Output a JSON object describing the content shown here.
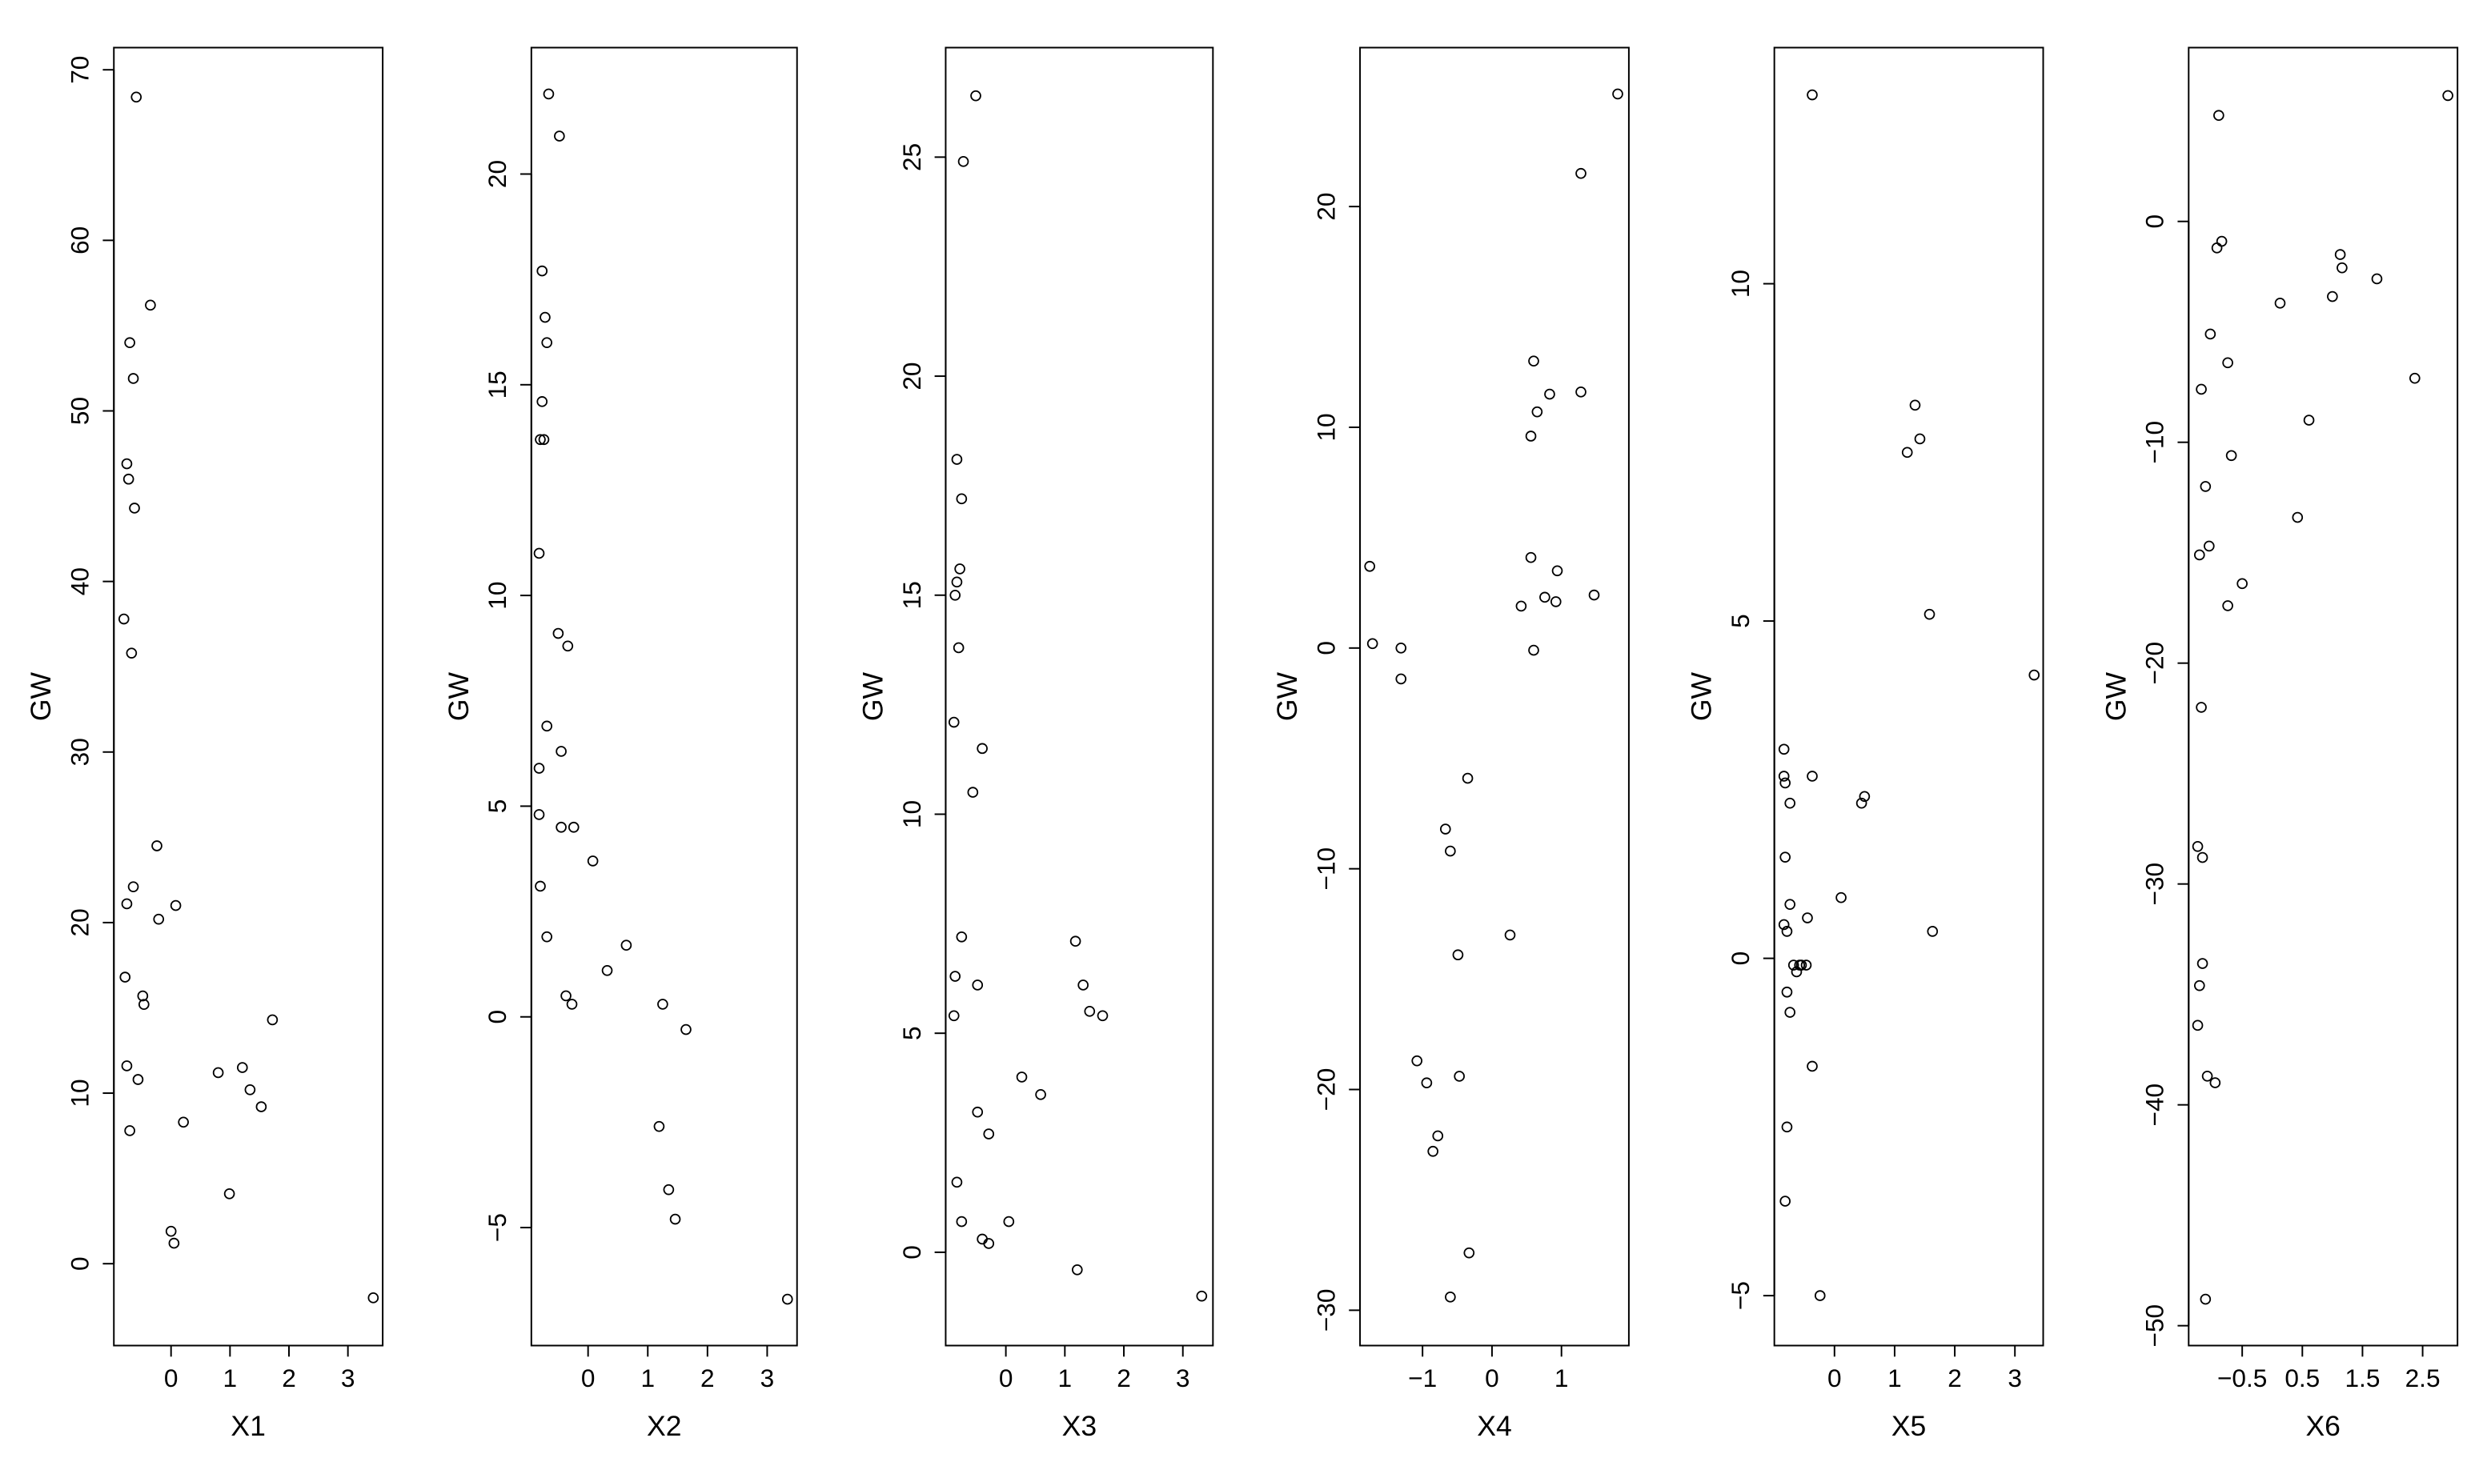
{
  "chart_data": [
    {
      "type": "scatter",
      "xlabel": "X1",
      "ylabel": "GW",
      "x": [
        -0.59,
        -0.35,
        -0.7,
        -0.64,
        -0.75,
        -0.72,
        -0.62,
        -0.8,
        -0.67,
        -0.24,
        -0.64,
        -0.75,
        0.08,
        -0.21,
        -0.78,
        -0.48,
        -0.46,
        1.72,
        -0.75,
        1.21,
        0.8,
        -0.56,
        1.34,
        1.53,
        0.21,
        -0.7,
        0.99,
        0.0,
        0.05,
        3.43
      ],
      "y": [
        68.4,
        56.2,
        54.0,
        51.9,
        46.9,
        46.0,
        44.3,
        37.8,
        35.8,
        24.5,
        22.1,
        21.1,
        21.0,
        20.2,
        16.8,
        15.7,
        15.2,
        14.3,
        11.6,
        11.5,
        11.2,
        10.8,
        10.2,
        9.2,
        8.3,
        7.8,
        4.1,
        1.9,
        1.2,
        -2.0
      ],
      "xlim": [
        -0.97,
        3.59
      ],
      "ylim": [
        -4.8,
        71.3
      ],
      "xticks": [
        0,
        1,
        2,
        3
      ],
      "yticks": [
        0,
        10,
        20,
        30,
        40,
        50,
        60,
        70
      ]
    },
    {
      "type": "scatter",
      "xlabel": "X2",
      "ylabel": "GW",
      "x": [
        -0.66,
        -0.48,
        -0.77,
        -0.72,
        -0.69,
        -0.77,
        -0.8,
        -0.74,
        -0.82,
        -0.5,
        -0.34,
        -0.69,
        -0.45,
        -0.82,
        -0.82,
        -0.45,
        -0.24,
        0.08,
        -0.8,
        -0.69,
        0.64,
        0.32,
        -0.37,
        -0.27,
        1.25,
        1.64,
        1.19,
        1.35,
        1.46,
        3.34
      ],
      "y": [
        21.9,
        20.9,
        17.7,
        16.6,
        16.0,
        14.6,
        13.7,
        13.7,
        11.0,
        9.1,
        8.8,
        6.9,
        6.3,
        5.9,
        4.8,
        4.5,
        4.5,
        3.7,
        3.1,
        1.9,
        1.7,
        1.1,
        0.5,
        0.3,
        0.3,
        -0.3,
        -2.6,
        -4.1,
        -4.8,
        -6.7
      ],
      "xlim": [
        -0.95,
        3.5
      ],
      "ylim": [
        -7.8,
        23.0
      ],
      "xticks": [
        0,
        1,
        2,
        3
      ],
      "yticks": [
        {
          "value": -5,
          "label": "−5"
        },
        0,
        5,
        10,
        15,
        20
      ]
    },
    {
      "type": "scatter",
      "xlabel": "X3",
      "ylabel": "GW",
      "x": [
        -0.51,
        -0.72,
        -0.83,
        -0.75,
        -0.78,
        -0.83,
        -0.86,
        -0.8,
        -0.88,
        -0.4,
        -0.56,
        -0.75,
        1.18,
        -0.86,
        -0.48,
        1.31,
        1.42,
        1.64,
        -0.88,
        0.27,
        0.59,
        -0.48,
        -0.29,
        -0.83,
        -0.75,
        0.05,
        -0.4,
        -0.29,
        1.21,
        3.32
      ],
      "y": [
        26.4,
        24.9,
        18.1,
        17.2,
        15.6,
        15.3,
        15.0,
        13.8,
        12.1,
        11.5,
        10.5,
        7.2,
        7.1,
        6.3,
        6.1,
        6.1,
        5.5,
        5.4,
        5.4,
        4.0,
        3.6,
        3.2,
        2.7,
        1.6,
        0.7,
        0.7,
        0.3,
        0.2,
        -0.4,
        -1.0
      ],
      "xlim": [
        -1.02,
        3.51
      ],
      "ylim": [
        -2.13,
        27.5
      ],
      "xticks": [
        0,
        1,
        2,
        3
      ],
      "yticks": [
        0,
        5,
        10,
        15,
        20,
        25
      ]
    },
    {
      "type": "scatter",
      "xlabel": "X4",
      "ylabel": "GW",
      "x": [
        1.81,
        1.28,
        0.6,
        1.28,
        0.83,
        0.65,
        0.56,
        -1.76,
        0.56,
        0.94,
        1.47,
        0.76,
        0.92,
        0.42,
        -1.72,
        -1.31,
        0.6,
        -1.31,
        -0.35,
        -0.67,
        -0.6,
        0.26,
        -0.49,
        -1.08,
        -0.47,
        -0.94,
        -0.78,
        -0.85,
        -0.33,
        -0.6
      ],
      "y": [
        25.1,
        21.5,
        13.0,
        11.6,
        11.5,
        10.7,
        9.6,
        3.7,
        4.1,
        3.5,
        2.4,
        2.3,
        2.1,
        1.9,
        0.2,
        0.0,
        -0.1,
        -1.4,
        -5.9,
        -8.2,
        -9.2,
        -13.0,
        -13.9,
        -18.7,
        -19.4,
        -19.7,
        -22.1,
        -22.8,
        -27.4,
        -29.4
      ],
      "xlim": [
        -1.9,
        1.97
      ],
      "ylim": [
        -31.6,
        27.2
      ],
      "xticks": [
        {
          "value": -1,
          "label": "−1"
        },
        0,
        1
      ],
      "yticks": [
        {
          "value": -30,
          "label": "−30"
        },
        {
          "value": -20,
          "label": "−20"
        },
        {
          "value": -10,
          "label": "−10"
        },
        0,
        10,
        20
      ]
    },
    {
      "type": "scatter",
      "xlabel": "X5",
      "ylabel": "GW",
      "x": [
        -0.37,
        1.34,
        1.42,
        1.21,
        1.58,
        3.32,
        -0.84,
        -0.84,
        -0.82,
        -0.37,
        -0.74,
        0.5,
        0.45,
        -0.82,
        0.11,
        -0.74,
        -0.45,
        -0.84,
        -0.79,
        1.63,
        -0.47,
        -0.58,
        -0.68,
        -0.55,
        -0.63,
        -0.79,
        -0.74,
        -0.37,
        -0.79,
        -0.82,
        -0.24
      ],
      "y": [
        12.8,
        8.2,
        7.7,
        7.5,
        5.1,
        4.2,
        3.1,
        2.7,
        2.6,
        2.7,
        2.3,
        2.4,
        2.3,
        1.5,
        0.9,
        0.8,
        0.6,
        0.5,
        0.4,
        0.4,
        -0.1,
        -0.1,
        -0.1,
        -0.1,
        -0.2,
        -0.5,
        -0.8,
        -1.6,
        -2.5,
        -3.6,
        -5.0
      ],
      "xlim": [
        -1.0,
        3.47
      ],
      "ylim": [
        -5.74,
        13.5
      ],
      "xticks": [
        0,
        1,
        2,
        3
      ],
      "yticks": [
        {
          "value": -5,
          "label": "−5"
        },
        0,
        5,
        10
      ]
    },
    {
      "type": "scatter",
      "xlabel": "X6",
      "ylabel": "GW",
      "x": [
        2.92,
        -0.89,
        -0.84,
        -0.92,
        1.13,
        1.16,
        1.74,
        1.0,
        0.13,
        -1.03,
        -0.74,
        2.37,
        -1.18,
        0.61,
        -0.68,
        -1.11,
        0.42,
        -1.05,
        -1.21,
        -0.5,
        -0.74,
        -1.18,
        -1.24,
        -1.16,
        -1.16,
        -1.21,
        -1.24,
        -1.08,
        -0.95,
        -1.11
      ],
      "y": [
        5.7,
        4.8,
        -0.9,
        -1.2,
        -1.5,
        -2.1,
        -2.6,
        -3.4,
        -3.7,
        -5.1,
        -6.4,
        -7.1,
        -7.6,
        -9.0,
        -10.6,
        -12.0,
        -13.4,
        -14.7,
        -15.1,
        -16.4,
        -17.4,
        -22.0,
        -28.3,
        -28.8,
        -33.6,
        -34.6,
        -36.4,
        -38.7,
        -39.0,
        -48.8
      ],
      "xlim": [
        -1.39,
        3.08
      ],
      "ylim": [
        -50.9,
        7.87
      ],
      "xticks": [
        {
          "value": -0.5,
          "label": "−0.5"
        },
        0.5,
        1.5,
        2.5
      ],
      "yticks": [
        {
          "value": -50,
          "label": "−50"
        },
        {
          "value": -40,
          "label": "−40"
        },
        {
          "value": -30,
          "label": "−30"
        },
        {
          "value": -20,
          "label": "−20"
        },
        {
          "value": -10,
          "label": "−10"
        },
        0
      ]
    }
  ]
}
